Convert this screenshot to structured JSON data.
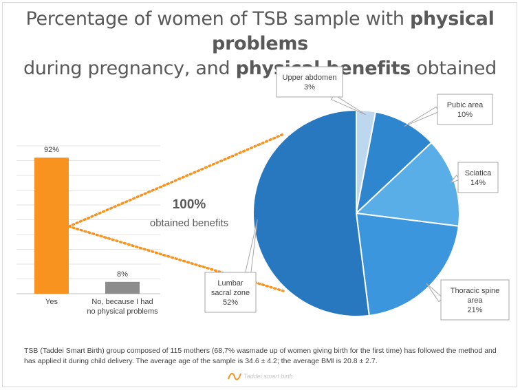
{
  "title": {
    "part1": "Percentage of women of TSB sample with ",
    "bold1": "physical problems",
    "part2": "during pregnancy, and ",
    "bold2": "physical benefits",
    "part3": " obtained"
  },
  "center": {
    "percent": "100%",
    "text": "obtained benefits"
  },
  "footnote": "TSB (Taddei Smart Birth) group composed of 115 mothers (68,7% wasmade up of women giving birth for the first time) has followed the method and has applied it during child delivery. The average age of the sample is 34.6 ± 4.2; the average BMI is 20.8 ± 2.7.",
  "logo_text": "Taddei smart birth",
  "colors": {
    "yes_bar": "#f7931e",
    "no_bar": "#8c8c8c",
    "connector": "#f7931e",
    "pie": [
      "#bdd7ee",
      "#2e86cf",
      "#5aaee8",
      "#3b96de",
      "#2878c0"
    ]
  },
  "chart_data": [
    {
      "type": "bar",
      "categories": [
        "Yes",
        "No, because I had no physical problems"
      ],
      "category_lines": [
        [
          "Yes"
        ],
        [
          "No, because I had",
          "no physical problems"
        ]
      ],
      "values": [
        92,
        8
      ],
      "value_labels": [
        "92%",
        "8%"
      ],
      "ylim": [
        0,
        100
      ],
      "grid": true
    },
    {
      "type": "pie",
      "labels": [
        "Upper abdomen",
        "Pubic area",
        "Sciatica",
        "Thoracic spine area",
        "Lumbar sacral zone"
      ],
      "label_lines": [
        [
          "Upper abdomen"
        ],
        [
          "Pubic area"
        ],
        [
          "Sciatica"
        ],
        [
          "Thoracic spine",
          "area"
        ],
        [
          "Lumbar",
          "sacral zone"
        ]
      ],
      "values": [
        3,
        10,
        14,
        21,
        52
      ],
      "value_labels": [
        "3%",
        "10%",
        "14%",
        "21%",
        "52%"
      ]
    }
  ]
}
